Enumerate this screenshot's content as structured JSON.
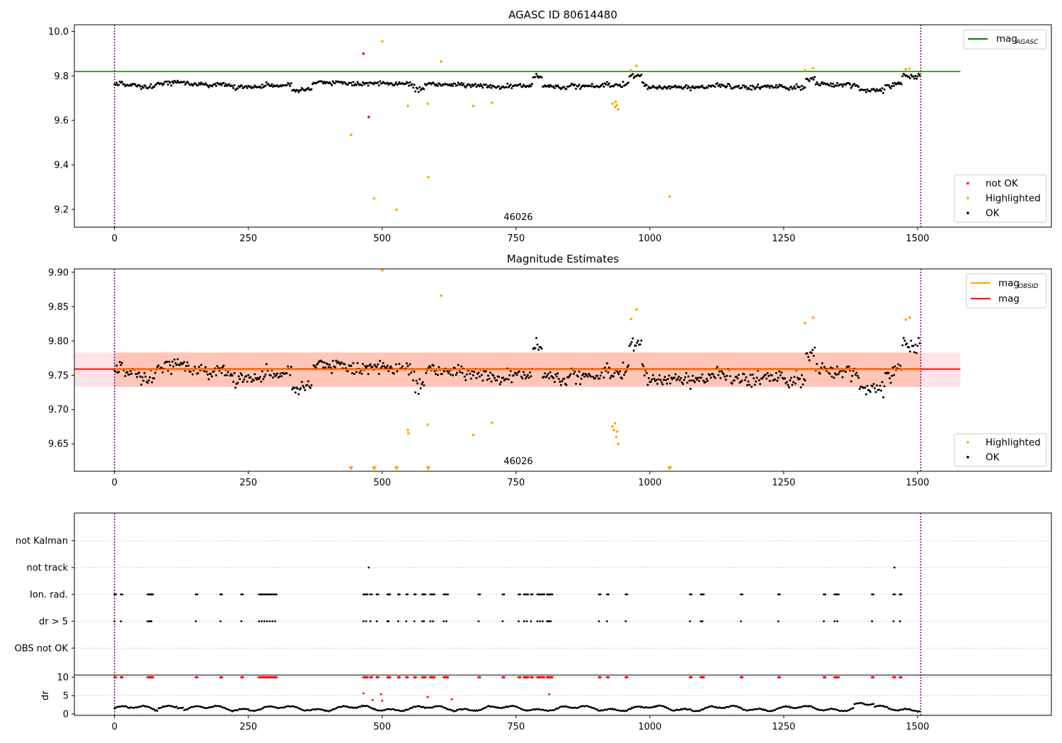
{
  "chart_data": [
    {
      "type": "scatter",
      "title": "AGASC ID 80614480",
      "obsid_label": "46026",
      "xlim": [
        -75,
        1750
      ],
      "ylim": [
        9.12,
        10.03
      ],
      "xticks": [
        0,
        250,
        500,
        750,
        1000,
        1250,
        1500
      ],
      "yticks": [
        9.2,
        9.4,
        9.6,
        9.8,
        10.0
      ],
      "ytick_labels": [
        "9.2",
        "9.4",
        "9.6",
        "9.8",
        "10.0"
      ],
      "vlines": [
        0,
        1506
      ],
      "hline": {
        "name": "mag",
        "sub": "AGASC",
        "value": 9.82,
        "x_range": [
          -75,
          1580
        ],
        "color": "#008000"
      },
      "series": [
        {
          "name": "not OK",
          "color": "#ff0000",
          "points": [
            [
              465,
              9.9
            ],
            [
              475,
              9.615
            ]
          ]
        },
        {
          "name": "Highlighted",
          "color": "#ffa500",
          "points": [
            [
              500,
              9.955
            ],
            [
              442,
              9.535
            ],
            [
              485,
              9.25
            ],
            [
              527,
              9.198
            ],
            [
              548,
              9.665
            ],
            [
              585,
              9.675
            ],
            [
              586,
              9.345
            ],
            [
              610,
              9.865
            ],
            [
              670,
              9.665
            ],
            [
              705,
              9.68
            ],
            [
              930,
              9.675
            ],
            [
              935,
              9.66
            ],
            [
              938,
              9.668
            ],
            [
              941,
              9.65
            ],
            [
              936,
              9.683
            ],
            [
              965,
              9.825
            ],
            [
              975,
              9.845
            ],
            [
              1037,
              9.258
            ],
            [
              1290,
              9.825
            ],
            [
              1305,
              9.835
            ],
            [
              1478,
              9.83
            ],
            [
              1485,
              9.833
            ]
          ]
        },
        {
          "name": "OK",
          "color": "#000000",
          "generated": "random-walk around 9.76, x 0-1506"
        }
      ],
      "legend": [
        {
          "label": "not OK",
          "color": "#ff0000"
        },
        {
          "label": "Highlighted",
          "color": "#ffa500"
        },
        {
          "label": "OK",
          "color": "#000000"
        }
      ],
      "line_legend": {
        "label": "mag",
        "sub": "AGASC",
        "color": "#008000"
      }
    },
    {
      "type": "scatter",
      "title": "Magnitude Estimates",
      "obsid_label": "46026",
      "xlim": [
        -75,
        1750
      ],
      "ylim": [
        9.61,
        9.905
      ],
      "xticks": [
        0,
        250,
        500,
        750,
        1000,
        1250,
        1500
      ],
      "yticks": [
        9.65,
        9.7,
        9.75,
        9.8,
        9.85,
        9.9
      ],
      "ytick_labels": [
        "9.65",
        "9.70",
        "9.75",
        "9.80",
        "9.85",
        "9.90"
      ],
      "vlines": [
        0,
        1506
      ],
      "mag": 9.759,
      "mag_obsid": 9.758,
      "band_outer": [
        9.733,
        9.783
      ],
      "band_inner": [
        9.733,
        9.783
      ],
      "series": [
        {
          "name": "Highlighted",
          "color": "#ffa500",
          "points": [
            [
              500,
              9.903
            ],
            [
              548,
              9.67
            ],
            [
              549,
              9.665
            ],
            [
              585,
              9.678
            ],
            [
              610,
              9.866
            ],
            [
              670,
              9.663
            ],
            [
              705,
              9.681
            ],
            [
              930,
              9.675
            ],
            [
              933,
              9.67
            ],
            [
              935,
              9.68
            ],
            [
              937,
              9.66
            ],
            [
              939,
              9.668
            ],
            [
              941,
              9.65
            ],
            [
              965,
              9.832
            ],
            [
              975,
              9.846
            ],
            [
              1290,
              9.826
            ],
            [
              1305,
              9.834
            ],
            [
              1478,
              9.831
            ],
            [
              1485,
              9.834
            ]
          ]
        },
        {
          "name": "Highlighted-offscale",
          "color": "#ffa500",
          "x": [
            442,
            485,
            527,
            586,
            1037
          ]
        },
        {
          "name": "OK",
          "color": "#000000",
          "generated": "random-walk around 9.755, x 0-1506"
        }
      ],
      "legend": [
        {
          "label": "Highlighted",
          "color": "#ffa500"
        },
        {
          "label": "OK",
          "color": "#000000"
        }
      ],
      "line_legend": [
        {
          "label": "mag",
          "sub": "OBSID",
          "color": "#ffa500"
        },
        {
          "label": "mag",
          "sub": "",
          "color": "#ff0000"
        }
      ]
    },
    {
      "type": "scatter",
      "title": "",
      "xlim": [
        -75,
        1750
      ],
      "flag_rows": [
        "not Kalman",
        "not track",
        "Ion. rad.",
        "dr > 5",
        "OBS not OK"
      ],
      "flags": {
        "not track": [
          475,
          1457
        ],
        "Ion. rad.": [
          0,
          12,
          62,
          65,
          67,
          69,
          152,
          198,
          237,
          270,
          275,
          280,
          285,
          290,
          295,
          300,
          465,
          470,
          478,
          490,
          510,
          512,
          530,
          545,
          560,
          575,
          578,
          590,
          595,
          615,
          620,
          680,
          725,
          755,
          765,
          770,
          778,
          790,
          795,
          800,
          808,
          810,
          812,
          815,
          905,
          920,
          955,
          1075,
          1095,
          1098,
          1170,
          1240,
          1325,
          1345,
          1350,
          1415,
          1455,
          1467
        ],
        "dr > 5": [
          0,
          12,
          62,
          65,
          67,
          69,
          152,
          198,
          237,
          270,
          275,
          280,
          285,
          290,
          295,
          300,
          465,
          470,
          478,
          490,
          510,
          512,
          530,
          545,
          560,
          575,
          578,
          590,
          595,
          615,
          620,
          680,
          725,
          755,
          765,
          770,
          778,
          790,
          795,
          800,
          808,
          810,
          812,
          815,
          905,
          920,
          955,
          1075,
          1095,
          1098,
          1170,
          1240,
          1325,
          1345,
          1350,
          1415,
          1455,
          1467
        ]
      },
      "dr": {
        "ylim": [
          -0.4,
          10.6
        ],
        "yticks": [
          0,
          5,
          10
        ],
        "ytick_labels": [
          "0",
          "5",
          "10"
        ],
        "ylabel": "dr",
        "red_points": [
          [
            465,
            5.6
          ],
          [
            482,
            3.8
          ],
          [
            498,
            5.4
          ],
          [
            500,
            3.6
          ],
          [
            585,
            4.6
          ],
          [
            630,
            4.0
          ],
          [
            812,
            5.4
          ]
        ],
        "red_at_ten": "dr > 5 flag positions",
        "black": "wavy baseline 0.5-3"
      },
      "xticks": [
        0,
        250,
        500,
        750,
        1000,
        1250,
        1500
      ]
    }
  ],
  "colors": {
    "green": "#008000",
    "orange": "#ffa500",
    "red": "#ff0000",
    "purple": "#800080",
    "band_outer": "#ffc0cb",
    "band_inner": "#ffa07a"
  }
}
